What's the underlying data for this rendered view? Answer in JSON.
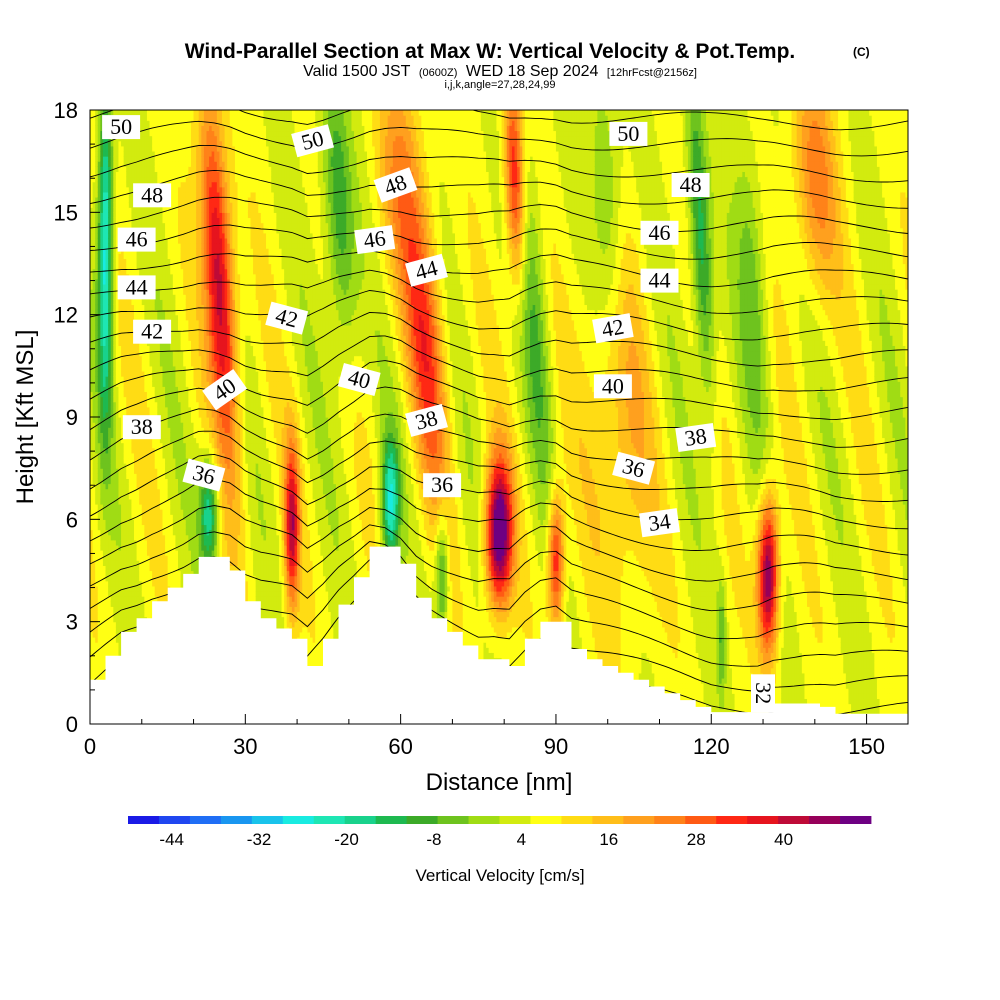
{
  "chart_data": {
    "type": "heatmap",
    "title": "Wind-Parallel Section at Max W: Vertical Velocity & Pot.Temp.",
    "title_mark": "(C)",
    "subtitle_valid": "Valid 1500 JST",
    "subtitle_utc": "(0600Z)",
    "subtitle_date": "WED 18 Sep 2024",
    "subtitle_fcst": "[12hrFcst@2156z]",
    "subtitle2": "i,j,k,angle=27,28,24,99",
    "xlabel": "Distance [nm]",
    "ylabel": "Height [Kft MSL]",
    "xlim": [
      0,
      158
    ],
    "ylim": [
      0,
      18
    ],
    "x_ticks": [
      "0",
      "30",
      "60",
      "90",
      "120",
      "150"
    ],
    "y_ticks": [
      "0",
      "3",
      "6",
      "9",
      "12",
      "15",
      "18"
    ],
    "colorbar": {
      "label": "Vertical Velocity [cm/s]",
      "tick_labels": [
        "-44",
        "-32",
        "-20",
        "-8",
        "4",
        "16",
        "28",
        "40"
      ],
      "min": -50,
      "max": 52,
      "colors": [
        "#1a1ae6",
        "#1f46f0",
        "#1f6ef5",
        "#1996f0",
        "#19c3eb",
        "#19ebe1",
        "#1ee6b4",
        "#19d28c",
        "#1eb950",
        "#3caa28",
        "#6ec31e",
        "#a0dc14",
        "#d2eb0f",
        "#ffff14",
        "#ffdc14",
        "#ffbe19",
        "#ffa01e",
        "#ff8219",
        "#ff5a14",
        "#ff2814",
        "#e6141e",
        "#be0a37",
        "#96005a",
        "#6e0082"
      ]
    },
    "contour_field": "Potential Temperature",
    "contour_labels": [
      "50",
      "50",
      "50",
      "48",
      "48",
      "48",
      "46",
      "46",
      "46",
      "44",
      "44",
      "44",
      "42",
      "42",
      "42",
      "40",
      "40",
      "40",
      "38",
      "38",
      "38",
      "36",
      "36",
      "36",
      "34",
      "32"
    ],
    "terrain": {
      "x": [
        0,
        3,
        6,
        9,
        12,
        15,
        18,
        21,
        24,
        27,
        30,
        33,
        36,
        39,
        42,
        45,
        48,
        51,
        54,
        57,
        60,
        63,
        66,
        69,
        72,
        75,
        78,
        81,
        84,
        87,
        90,
        93,
        96,
        99,
        102,
        105,
        108,
        111,
        114,
        117,
        120,
        123,
        126,
        129,
        132,
        135,
        138,
        141,
        144,
        147,
        150,
        153,
        156,
        158
      ],
      "height": [
        1.3,
        2.0,
        2.7,
        3.1,
        3.6,
        4.0,
        4.4,
        4.9,
        4.9,
        4.5,
        3.6,
        3.1,
        2.8,
        2.5,
        1.7,
        2.5,
        3.5,
        4.3,
        5.2,
        5.2,
        4.7,
        3.7,
        3.1,
        2.7,
        2.3,
        1.9,
        1.9,
        1.7,
        2.5,
        3.0,
        3.0,
        2.2,
        1.9,
        1.7,
        1.5,
        1.3,
        1.1,
        0.9,
        0.7,
        0.5,
        0.35,
        0.35,
        0.35,
        0.35,
        0.6,
        0.6,
        0.6,
        0.5,
        0.3,
        0.3,
        0.3,
        0.3,
        0.3,
        0.3
      ]
    },
    "w_features": [
      {
        "name": "updraft",
        "x": 25,
        "z": 13,
        "value": 38,
        "sx": 2.0,
        "sz": 3.8,
        "tilt": -0.4
      },
      {
        "name": "updraft",
        "x": 39,
        "z": 5.8,
        "value": 34,
        "sx": 1.0,
        "sz": 1.7,
        "tilt": 0
      },
      {
        "name": "updraft",
        "x": 65,
        "z": 11,
        "value": 24,
        "sx": 2.5,
        "sz": 3.2,
        "tilt": -0.45
      },
      {
        "name": "updraft",
        "x": 79,
        "z": 5.6,
        "value": 50,
        "sx": 1.8,
        "sz": 1.5,
        "tilt": 0
      },
      {
        "name": "updraft",
        "x": 90,
        "z": 4.8,
        "value": 32,
        "sx": 1.1,
        "sz": 1.4,
        "tilt": 0
      },
      {
        "name": "updraft",
        "x": 131,
        "z": 4.4,
        "value": 45,
        "sx": 1.4,
        "sz": 1.6,
        "tilt": 0
      },
      {
        "name": "updraft",
        "x": 82,
        "z": 16,
        "value": 30,
        "sx": 1.3,
        "sz": 2.2,
        "tilt": -0.2
      },
      {
        "name": "updraft",
        "x": 140,
        "z": 16,
        "value": 18,
        "sx": 3.0,
        "sz": 2.5,
        "tilt": -0.3
      },
      {
        "name": "updraft",
        "x": 102,
        "z": 9,
        "value": 14,
        "sx": 4.0,
        "sz": 4.0,
        "tilt": -0.3
      },
      {
        "name": "updraft",
        "x": 60,
        "z": 16,
        "value": 14,
        "sx": 3.0,
        "sz": 2.5,
        "tilt": -0.3
      },
      {
        "name": "downdraft",
        "x": 3,
        "z": 14,
        "value": -34,
        "sx": 1.0,
        "sz": 3.5,
        "tilt": 0
      },
      {
        "name": "downdraft",
        "x": 23,
        "z": 6.2,
        "value": -26,
        "sx": 1.3,
        "sz": 1.2,
        "tilt": 0
      },
      {
        "name": "downdraft",
        "x": 58,
        "z": 6.5,
        "value": -30,
        "sx": 1.2,
        "sz": 1.3,
        "tilt": 0
      },
      {
        "name": "downdraft",
        "x": 68,
        "z": 4.5,
        "value": -20,
        "sx": 0.9,
        "sz": 1.3,
        "tilt": 0
      },
      {
        "name": "downdraft",
        "x": 48,
        "z": 15,
        "value": -18,
        "sx": 2.0,
        "sz": 3.2,
        "tilt": -0.35
      },
      {
        "name": "downdraft",
        "x": 118,
        "z": 14,
        "value": -22,
        "sx": 1.4,
        "sz": 3.5,
        "tilt": -0.35
      },
      {
        "name": "downdraft",
        "x": 100,
        "z": 15,
        "value": -14,
        "sx": 2.2,
        "sz": 3.0,
        "tilt": -0.35
      },
      {
        "name": "downdraft",
        "x": 128,
        "z": 13,
        "value": -12,
        "sx": 2.0,
        "sz": 3.0,
        "tilt": -0.35
      },
      {
        "name": "downdraft",
        "x": 86,
        "z": 12,
        "value": -12,
        "sx": 1.8,
        "sz": 3.5,
        "tilt": -0.35
      },
      {
        "name": "downdraft",
        "x": 122,
        "z": 2.5,
        "value": -12,
        "sx": 0.6,
        "sz": 1.2,
        "tilt": 0
      }
    ],
    "w_background": 6
  }
}
